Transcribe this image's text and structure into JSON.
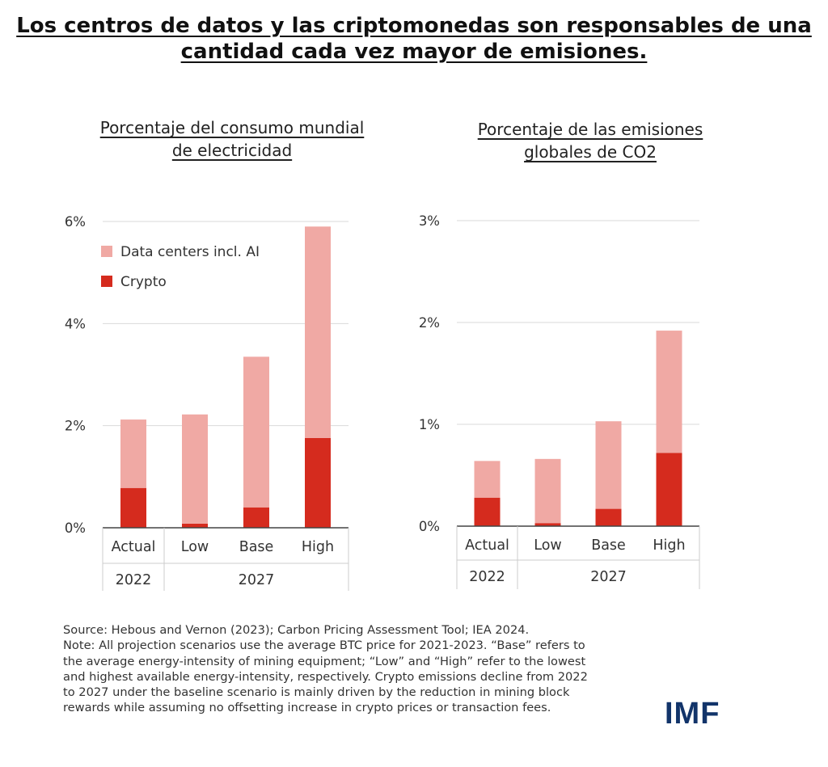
{
  "title": {
    "line1": "Los centros de datos y las criptomonedas son responsables de una",
    "line2": "cantidad cada vez mayor de emisiones."
  },
  "chart_data": [
    {
      "type": "bar",
      "stacked": true,
      "title_lines": [
        "Porcentaje del consumo mundial",
        "de electricidad"
      ],
      "categories": [
        "Actual",
        "Low",
        "Base",
        "High"
      ],
      "category_groups": [
        {
          "label": "2022",
          "categories": [
            "Actual"
          ]
        },
        {
          "label": "2027",
          "categories": [
            "Low",
            "Base",
            "High"
          ]
        }
      ],
      "series": [
        {
          "name": "Crypto",
          "color": "#d52b1e",
          "values": [
            0.78,
            0.08,
            0.4,
            1.76
          ]
        },
        {
          "name": "Data centers incl. AI",
          "color": "#f0a9a4",
          "values": [
            1.34,
            2.14,
            2.95,
            4.14
          ]
        }
      ],
      "legend_order": [
        "Data centers incl. AI",
        "Crypto"
      ],
      "legend_position": "top-left",
      "ylim": [
        0,
        6
      ],
      "yticks": [
        0,
        2,
        4,
        6
      ],
      "ytick_labels": [
        "0%",
        "2%",
        "4%",
        "6%"
      ],
      "grid": true
    },
    {
      "type": "bar",
      "stacked": true,
      "title_lines": [
        "Porcentaje de las emisiones",
        "globales de CO2"
      ],
      "categories": [
        "Actual",
        "Low",
        "Base",
        "High"
      ],
      "category_groups": [
        {
          "label": "2022",
          "categories": [
            "Actual"
          ]
        },
        {
          "label": "2027",
          "categories": [
            "Low",
            "Base",
            "High"
          ]
        }
      ],
      "series": [
        {
          "name": "Crypto",
          "color": "#d52b1e",
          "values": [
            0.28,
            0.03,
            0.17,
            0.72
          ]
        },
        {
          "name": "Data centers incl. AI",
          "color": "#f0a9a4",
          "values": [
            0.36,
            0.63,
            0.86,
            1.2
          ]
        }
      ],
      "ylim": [
        0,
        3
      ],
      "yticks": [
        0,
        1,
        2,
        3
      ],
      "ytick_labels": [
        "0%",
        "1%",
        "2%",
        "3%"
      ],
      "grid": true
    }
  ],
  "footnote": {
    "lines": [
      "Source: Hebous and Vernon (2023); Carbon Pricing Assessment Tool; IEA 2024.",
      "Note: All projection scenarios use the average BTC price for 2021-2023. “Base” refers to",
      "the average energy-intensity of mining equipment; “Low” and “High” refer to the lowest",
      "and highest available energy-intensity, respectively. Crypto emissions decline from 2022",
      "to 2027 under the baseline scenario is mainly driven by the reduction in mining block",
      "rewards while assuming no offsetting increase in crypto prices or transaction fees."
    ]
  },
  "logo": {
    "text": "IMF",
    "color": "#12346a"
  }
}
